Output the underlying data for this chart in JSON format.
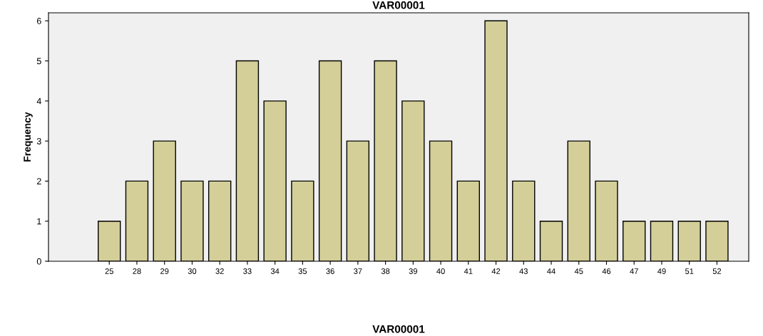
{
  "chart_data": {
    "type": "bar",
    "title": "VAR00001",
    "xlabel": "VAR00001",
    "ylabel": "Frequency",
    "categories": [
      "25",
      "28",
      "29",
      "30",
      "32",
      "33",
      "34",
      "35",
      "36",
      "37",
      "38",
      "39",
      "40",
      "41",
      "42",
      "43",
      "44",
      "45",
      "46",
      "47",
      "49",
      "51",
      "52"
    ],
    "values": [
      1,
      2,
      3,
      2,
      2,
      5,
      4,
      2,
      5,
      3,
      5,
      4,
      3,
      2,
      6,
      2,
      1,
      3,
      2,
      1,
      1,
      1,
      1
    ],
    "color": "#d4cf98",
    "ylim": [
      0,
      6.2
    ],
    "yticks": [
      0,
      1,
      2,
      3,
      4,
      5,
      6
    ],
    "grid": false,
    "legend": false
  }
}
